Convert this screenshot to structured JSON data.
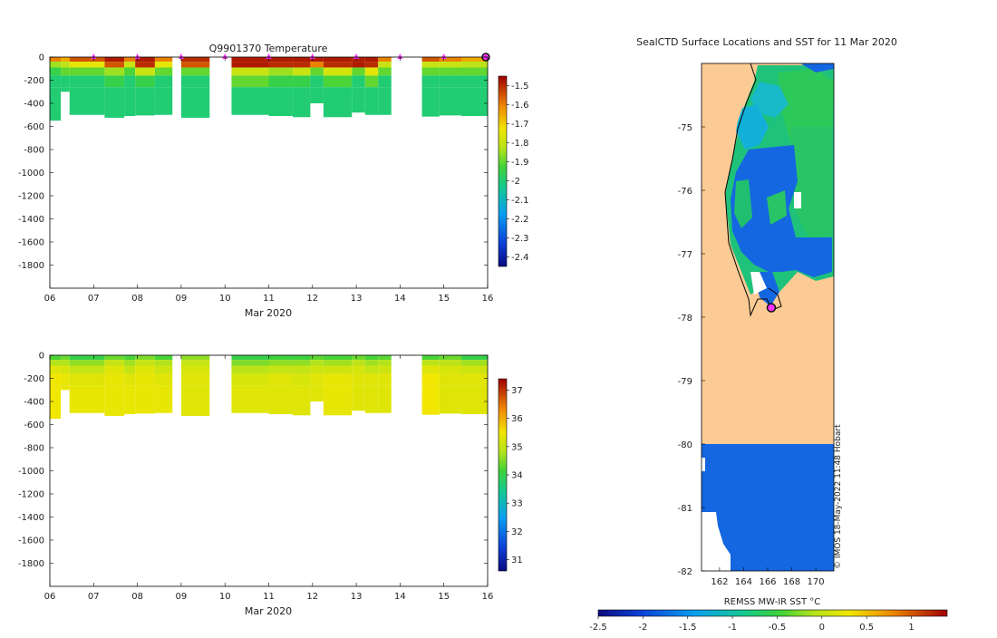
{
  "chart_data": [
    {
      "type": "heatmap",
      "title": "Q9901370  Temperature",
      "xlabel": "Mar 2020",
      "x_ticks": [
        "06",
        "07",
        "08",
        "09",
        "10",
        "11",
        "12",
        "13",
        "14",
        "15",
        "16"
      ],
      "xlim": [
        6,
        16
      ],
      "ylim": [
        -2000,
        0
      ],
      "y_ticks": [
        0,
        -200,
        -400,
        -600,
        -800,
        -1000,
        -1200,
        -1400,
        -1600,
        -1800
      ],
      "colorbar": {
        "min": -2.45,
        "max": -1.45,
        "ticks": [
          -1.5,
          -1.6,
          -1.7,
          -1.8,
          -1.9,
          -2,
          -2.1,
          -2.2,
          -2.3,
          -2.4
        ]
      },
      "markers": {
        "color": "#ff33ff",
        "days": [
          7,
          8,
          9,
          10,
          11,
          12,
          13,
          14,
          15
        ]
      },
      "current_profile_day": 16,
      "gap_ranges": [
        [
          8.8,
          9.0
        ],
        [
          9.65,
          10.15
        ],
        [
          13.8,
          14.3
        ]
      ],
      "profiles": [
        {
          "day": 6.0,
          "bottom": -550,
          "values": [
            -1.6,
            -1.85,
            -1.95,
            -2.0,
            -2.0
          ]
        },
        {
          "day": 6.25,
          "bottom": -300,
          "values": [
            -1.65,
            -1.82,
            -1.9,
            -2.0,
            -2.0
          ]
        },
        {
          "day": 6.45,
          "bottom": -500,
          "values": [
            -1.55,
            -1.75,
            -1.9,
            -2.0,
            -2.0
          ]
        },
        {
          "day": 7.25,
          "bottom": -525,
          "values": [
            -1.48,
            -1.55,
            -1.85,
            -1.95,
            -2.0
          ]
        },
        {
          "day": 7.7,
          "bottom": -510,
          "values": [
            -1.6,
            -1.8,
            -1.92,
            -2.0,
            -2.0
          ]
        },
        {
          "day": 7.95,
          "bottom": -505,
          "values": [
            -1.48,
            -1.5,
            -1.8,
            -1.95,
            -2.0
          ]
        },
        {
          "day": 8.4,
          "bottom": -500,
          "values": [
            -1.6,
            -1.75,
            -1.9,
            -2.0,
            -2.0
          ]
        },
        {
          "day": 9.0,
          "bottom": -525,
          "values": [
            -1.5,
            -1.55,
            -1.9,
            -2.0,
            -2.0
          ]
        },
        {
          "day": 10.15,
          "bottom": -500,
          "values": [
            -1.48,
            -1.48,
            -1.8,
            -1.9,
            -2.0
          ]
        },
        {
          "day": 11.0,
          "bottom": -510,
          "values": [
            -1.48,
            -1.5,
            -1.85,
            -1.95,
            -2.0
          ]
        },
        {
          "day": 11.55,
          "bottom": -520,
          "values": [
            -1.48,
            -1.5,
            -1.8,
            -1.95,
            -2.0
          ]
        },
        {
          "day": 11.95,
          "bottom": -400,
          "values": [
            -1.48,
            -1.6,
            -1.9,
            -2.0,
            -2.0
          ]
        },
        {
          "day": 12.25,
          "bottom": -520,
          "values": [
            -1.48,
            -1.5,
            -1.78,
            -1.92,
            -2.0
          ]
        },
        {
          "day": 12.9,
          "bottom": -480,
          "values": [
            -1.48,
            -1.48,
            -1.9,
            -2.0,
            -2.0
          ]
        },
        {
          "day": 13.2,
          "bottom": -500,
          "values": [
            -1.48,
            -1.5,
            -1.75,
            -1.9,
            -2.0
          ]
        },
        {
          "day": 13.5,
          "bottom": -500,
          "values": [
            -1.6,
            -1.8,
            -1.9,
            -2.0,
            -2.0
          ]
        },
        {
          "day": 14.5,
          "bottom": -515,
          "values": [
            -1.55,
            -1.8,
            -1.9,
            -2.0,
            -2.0
          ]
        },
        {
          "day": 14.9,
          "bottom": -505,
          "values": [
            -1.6,
            -1.8,
            -1.9,
            -2.0,
            -2.0
          ]
        },
        {
          "day": 15.4,
          "bottom": -510,
          "values": [
            -1.65,
            -1.82,
            -1.9,
            -2.0,
            -2.0
          ]
        }
      ]
    },
    {
      "type": "heatmap",
      "title": "",
      "xlabel": "Mar 2020",
      "x_ticks": [
        "06",
        "07",
        "08",
        "09",
        "10",
        "11",
        "12",
        "13",
        "14",
        "15",
        "16"
      ],
      "xlim": [
        6,
        16
      ],
      "ylim": [
        -2000,
        0
      ],
      "y_ticks": [
        0,
        -200,
        -400,
        -600,
        -800,
        -1000,
        -1200,
        -1400,
        -1600,
        -1800
      ],
      "colorbar": {
        "min": 30.6,
        "max": 37.4,
        "ticks": [
          37,
          36,
          35,
          34,
          33,
          32,
          31
        ]
      },
      "gap_ranges": [
        [
          8.8,
          9.0
        ],
        [
          9.65,
          10.15
        ],
        [
          13.8,
          14.3
        ]
      ],
      "profiles": [
        {
          "day": 6.0,
          "bottom": -550,
          "values": [
            34.2,
            34.8,
            35.3,
            35.5,
            35.5
          ]
        },
        {
          "day": 6.25,
          "bottom": -300,
          "values": [
            34.4,
            34.8,
            35.2,
            35.4,
            35.4
          ]
        },
        {
          "day": 6.45,
          "bottom": -500,
          "values": [
            34.0,
            34.6,
            35.0,
            35.3,
            35.4
          ]
        },
        {
          "day": 7.25,
          "bottom": -525,
          "values": [
            34.4,
            35.0,
            35.3,
            35.4,
            35.4
          ]
        },
        {
          "day": 7.7,
          "bottom": -510,
          "values": [
            34.2,
            34.7,
            35.0,
            35.3,
            35.4
          ]
        },
        {
          "day": 7.95,
          "bottom": -505,
          "values": [
            34.5,
            35.0,
            35.3,
            35.4,
            35.4
          ]
        },
        {
          "day": 8.4,
          "bottom": -500,
          "values": [
            34.2,
            34.8,
            35.1,
            35.3,
            35.4
          ]
        },
        {
          "day": 9.0,
          "bottom": -525,
          "values": [
            34.6,
            35.0,
            35.2,
            35.3,
            35.3
          ]
        },
        {
          "day": 10.15,
          "bottom": -500,
          "values": [
            34.0,
            34.5,
            34.9,
            35.2,
            35.3
          ]
        },
        {
          "day": 11.0,
          "bottom": -510,
          "values": [
            34.1,
            34.6,
            35.0,
            35.3,
            35.3
          ]
        },
        {
          "day": 11.55,
          "bottom": -520,
          "values": [
            34.1,
            34.6,
            35.0,
            35.2,
            35.3
          ]
        },
        {
          "day": 11.95,
          "bottom": -400,
          "values": [
            34.3,
            34.8,
            35.1,
            35.3,
            35.3
          ]
        },
        {
          "day": 12.25,
          "bottom": -520,
          "values": [
            34.2,
            34.7,
            35.1,
            35.4,
            35.4
          ]
        },
        {
          "day": 12.9,
          "bottom": -480,
          "values": [
            34.4,
            34.9,
            35.2,
            35.3,
            35.3
          ]
        },
        {
          "day": 13.2,
          "bottom": -500,
          "values": [
            34.2,
            34.7,
            35.0,
            35.3,
            35.3
          ]
        },
        {
          "day": 13.5,
          "bottom": -500,
          "values": [
            34.3,
            34.8,
            35.1,
            35.3,
            35.3
          ]
        },
        {
          "day": 14.5,
          "bottom": -515,
          "values": [
            34.2,
            34.9,
            35.3,
            35.5,
            35.5
          ]
        },
        {
          "day": 14.9,
          "bottom": -505,
          "values": [
            34.4,
            34.9,
            35.2,
            35.3,
            35.3
          ]
        },
        {
          "day": 15.4,
          "bottom": -510,
          "values": [
            34.0,
            34.7,
            35.1,
            35.3,
            35.3
          ]
        }
      ]
    },
    {
      "type": "heatmap",
      "title": "SealCTD Surface Locations and SST for 11 Mar 2020",
      "xlabel": "",
      "x_ticks": [
        "162",
        "164",
        "166",
        "168",
        "170"
      ],
      "xlim": [
        160.5,
        171.5
      ],
      "y_ticks": [
        "-75",
        "-76",
        "-77",
        "-78",
        "-79",
        "-80",
        "-81",
        "-82"
      ],
      "ylim": [
        -82,
        -74
      ],
      "colorbar": {
        "label": "REMSS MW-IR SST °C",
        "min": -2.5,
        "max": 1.4,
        "ticks": [
          "-2.5",
          "-2",
          "-1.5",
          "-1",
          "-0.5",
          "0",
          "0.5",
          "1"
        ]
      },
      "seal_position": {
        "lon": 166.3,
        "lat": -77.85
      },
      "land_color": "#fccb95",
      "credit": "© IMOS 18-May-2022 11:48 Hobart"
    }
  ]
}
